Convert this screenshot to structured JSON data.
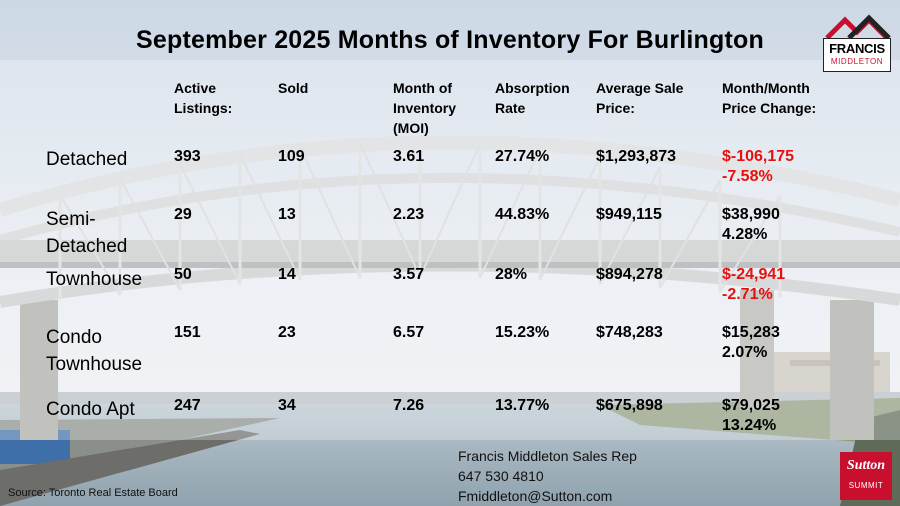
{
  "title": "September  2025 Months of Inventory For Burlington",
  "logo": {
    "name": "FRANCIS",
    "sub": "MIDDLETON"
  },
  "headers": [
    [
      "Active",
      "Listings:"
    ],
    [
      "Sold"
    ],
    [
      "Month of",
      "Inventory",
      "(MOI)"
    ],
    [
      "Absorption",
      "Rate"
    ],
    [
      "Average Sale",
      "Price:"
    ],
    [
      "Month/Month",
      "Price Change:"
    ]
  ],
  "rows": [
    {
      "label": [
        "Detached"
      ],
      "active": "393",
      "sold": "109",
      "moi": "3.61",
      "absorption": "27.74%",
      "avg_price": "$1,293,873",
      "change_amount": "$-106,175",
      "change_pct": "-7.58%",
      "negative": true
    },
    {
      "label": [
        "Semi-",
        "Detached"
      ],
      "active": "29",
      "sold": "13",
      "moi": "2.23",
      "absorption": "44.83%",
      "avg_price": "$949,115",
      "change_amount": "$38,990",
      "change_pct": "4.28%",
      "negative": false
    },
    {
      "label": [
        "Townhouse"
      ],
      "active": "50",
      "sold": "14",
      "moi": "3.57",
      "absorption": "28%",
      "avg_price": "$894,278",
      "change_amount": "$-24,941",
      "change_pct": "-2.71%",
      "negative": true
    },
    {
      "label": [
        "Condo",
        "Townhouse"
      ],
      "active": "151",
      "sold": "23",
      "moi": "6.57",
      "absorption": "15.23%",
      "avg_price": "$748,283",
      "change_amount": "$15,283",
      "change_pct": "2.07%",
      "negative": false
    },
    {
      "label": [
        "Condo Apt"
      ],
      "active": "247",
      "sold": "34",
      "moi": "7.26",
      "absorption": "13.77%",
      "avg_price": "$675,898",
      "change_amount": "$79,025",
      "change_pct": "13.24%",
      "negative": false
    }
  ],
  "contact": {
    "name": "Francis Middleton Sales Rep",
    "phone": "647 530 4810",
    "email": "Fmiddleton@Sutton.com"
  },
  "source": "Source: Toronto Real Estate Board",
  "brand": {
    "name": "Sutton",
    "sub": "SUMMIT"
  },
  "colors": {
    "negative": "#e8100f",
    "brand_red": "#c8102e"
  }
}
